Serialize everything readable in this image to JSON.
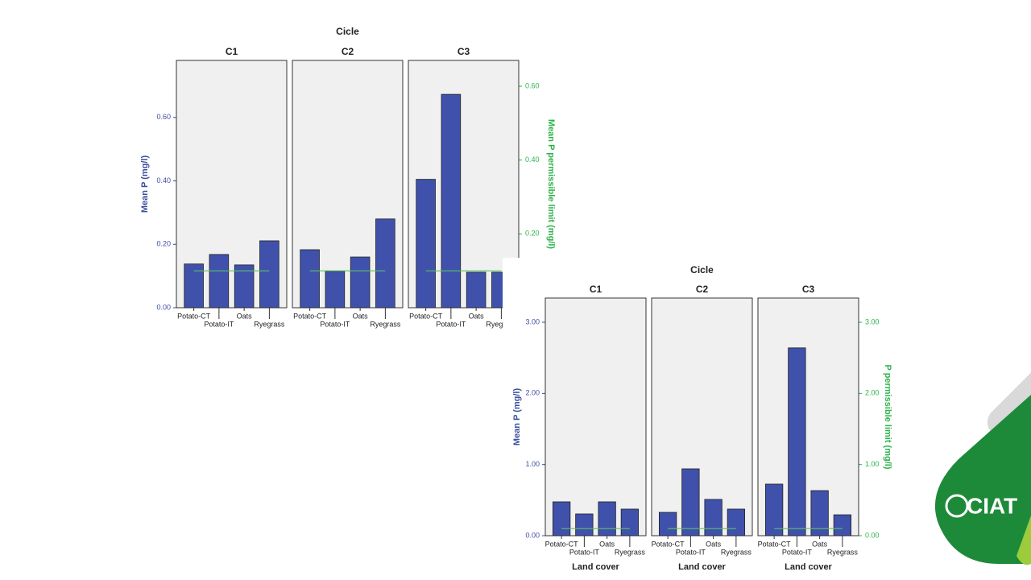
{
  "chart_data": [
    {
      "type": "bar",
      "title": "Cicle",
      "ylabel": "Mean P (mg/l)",
      "y2label": "Mean P permissible limit (mg/l)",
      "categories": [
        "Potato-CT",
        "Potato-IT",
        "Oats",
        "Ryegrass"
      ],
      "ylim": [
        0,
        0.78
      ],
      "yticks": [
        {
          "value": 0,
          "label": "0.00"
        },
        {
          "value": 0.2,
          "label": "0.20"
        },
        {
          "value": 0.4,
          "label": "0.40"
        },
        {
          "value": 0.6,
          "label": "0.60"
        }
      ],
      "y2lim": [
        0,
        0.67
      ],
      "y2ticks": [
        {
          "value": 0.2,
          "label": "0.20"
        },
        {
          "value": 0.4,
          "label": "0.40"
        },
        {
          "value": 0.6,
          "label": "0.60"
        }
      ],
      "bar_color": "#3f51ab",
      "limit_color": "#5cbf6a",
      "facets": [
        {
          "label": "C1",
          "values": [
            0.138,
            0.168,
            0.135,
            0.211
          ],
          "limit": [
            0.1,
            0.1,
            0.1,
            0.1
          ]
        },
        {
          "label": "C2",
          "values": [
            0.183,
            0.115,
            0.16,
            0.28
          ],
          "limit": [
            0.1,
            0.1,
            0.1,
            0.1
          ]
        },
        {
          "label": "C3",
          "values": [
            0.405,
            0.673,
            0.112,
            0.112
          ],
          "limit": [
            0.1,
            0.1,
            0.1,
            0.1
          ]
        }
      ]
    },
    {
      "type": "bar",
      "title": "Cicle",
      "ylabel": "Mean P (mg/l)",
      "y2label": "P permissible limit (mg/l)",
      "xlabel": "Land cover",
      "categories": [
        "Potato-CT",
        "Potato-IT",
        "Oats",
        "Ryegrass"
      ],
      "ylim": [
        0,
        3.34
      ],
      "yticks": [
        {
          "value": 0,
          "label": "0.00"
        },
        {
          "value": 1,
          "label": "1.00"
        },
        {
          "value": 2,
          "label": "2.00"
        },
        {
          "value": 3,
          "label": "3.00"
        }
      ],
      "y2lim": [
        0,
        3.34
      ],
      "y2ticks": [
        {
          "value": 0,
          "label": "0.00"
        },
        {
          "value": 1,
          "label": "1.00"
        },
        {
          "value": 2,
          "label": "2.00"
        },
        {
          "value": 3,
          "label": "3.00"
        }
      ],
      "bar_color": "#3f51ab",
      "limit_color": "#5cbf6a",
      "facets": [
        {
          "label": "C1",
          "values": [
            0.476,
            0.306,
            0.476,
            0.374
          ],
          "limit": [
            0.1,
            0.1,
            0.1,
            0.1
          ]
        },
        {
          "label": "C2",
          "values": [
            0.328,
            0.94,
            0.51,
            0.374
          ],
          "limit": [
            0.1,
            0.1,
            0.1,
            0.1
          ]
        },
        {
          "label": "C3",
          "values": [
            0.725,
            2.64,
            0.634,
            0.294
          ],
          "limit": [
            0.1,
            0.1,
            0.1,
            0.1
          ]
        }
      ]
    }
  ],
  "logo": "CIAT"
}
